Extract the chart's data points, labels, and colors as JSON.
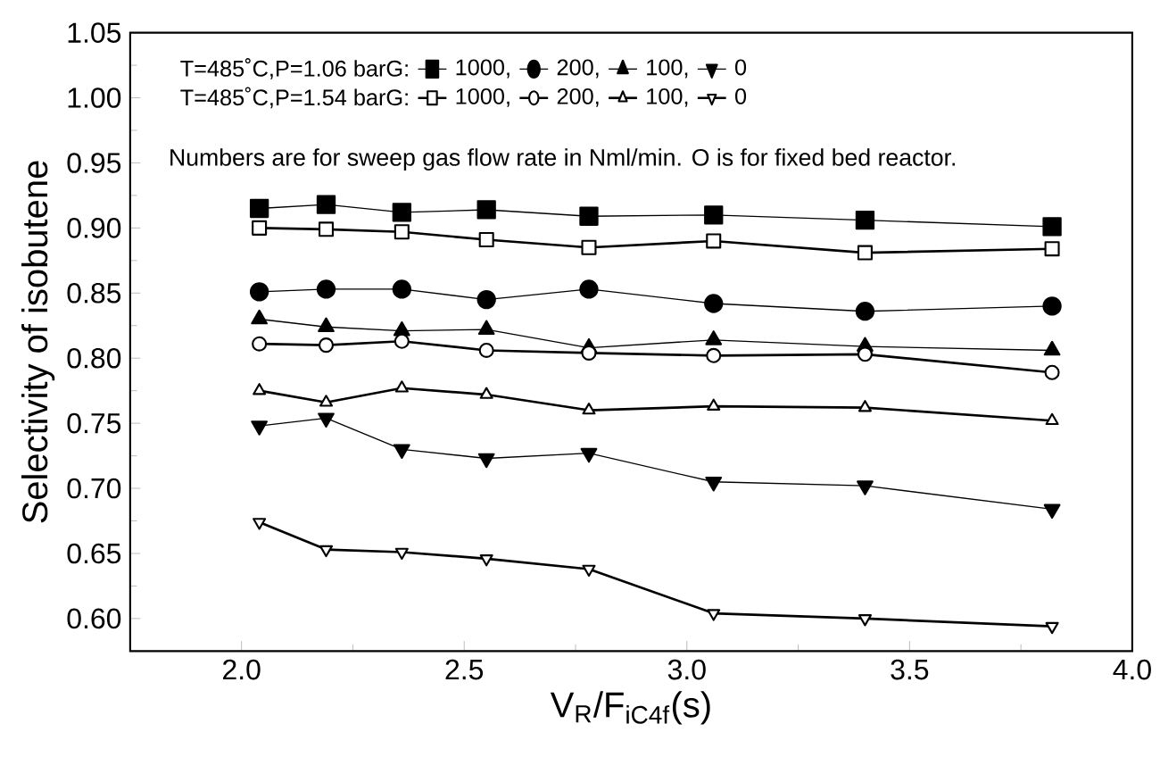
{
  "chart_data": {
    "type": "line",
    "xlabel": "V$_{R}$/F$_{iC4f}$(s)",
    "ylabel": "Selectivity of isobutene",
    "x": [
      2.04,
      2.19,
      2.36,
      2.55,
      2.78,
      3.06,
      3.4,
      3.82
    ],
    "series": [
      {
        "name": "1000,",
        "color": "#000000",
        "marker": "square",
        "values": [
          0.915,
          0.918,
          0.912,
          0.914,
          0.909,
          0.91,
          0.906,
          0.901
        ]
      },
      {
        "name": "200,",
        "color": "#000000",
        "marker": "circle",
        "values": [
          0.851,
          0.853,
          0.853,
          0.845,
          0.853,
          0.842,
          0.836,
          0.84
        ]
      },
      {
        "name": "100,",
        "color": "#000000",
        "marker": "triangle",
        "values": [
          0.83,
          0.824,
          0.821,
          0.822,
          0.808,
          0.814,
          0.809,
          0.806
        ]
      },
      {
        "name": "0",
        "color": "#000000",
        "marker": "triangle-down",
        "values": [
          0.748,
          0.754,
          0.73,
          0.723,
          0.727,
          0.705,
          0.702,
          0.684
        ]
      },
      {
        "name": "1000,",
        "color": "#000000",
        "marker": "square",
        "values": [
          0.9,
          0.899,
          0.897,
          0.891,
          0.885,
          0.89,
          0.881,
          0.884
        ]
      },
      {
        "name": "200,",
        "color": "#000000",
        "marker": "circle",
        "values": [
          0.811,
          0.81,
          0.813,
          0.806,
          0.804,
          0.802,
          0.803,
          0.789
        ]
      },
      {
        "name": "100,",
        "color": "#000000",
        "marker": "triangle",
        "values": [
          0.775,
          0.766,
          0.777,
          0.772,
          0.76,
          0.763,
          0.762,
          0.752
        ]
      },
      {
        "name": "0",
        "color": "#000000",
        "marker": "triangle-down",
        "values": [
          0.674,
          0.653,
          0.651,
          0.646,
          0.638,
          0.604,
          0.6,
          0.594
        ]
      }
    ],
    "annotations": [
      "T=485˚C,P=1.06  barG:",
      "T=485˚C,P=1.54  barG:",
      "Numbers are for sweep gas flow rate in Nml/min. O is for fixed bed reactor."
    ],
    "xlim": [
      1.75,
      4.0
    ],
    "xticks": [
      {
        "value": 2.0,
        "label": "2.0"
      },
      {
        "value": 2.5,
        "label": "2.5"
      },
      {
        "value": 3.0,
        "label": "3.0"
      },
      {
        "value": 3.5,
        "label": "3.5"
      },
      {
        "value": 4.0,
        "label": "4.0"
      }
    ],
    "ylim": [
      0.575,
      1.05
    ],
    "yticks": [
      {
        "value": 0.6,
        "label": "0.60"
      },
      {
        "value": 0.65,
        "label": "0.65"
      },
      {
        "value": 0.7,
        "label": "0.70"
      },
      {
        "value": 0.75,
        "label": "0.75"
      },
      {
        "value": 0.8,
        "label": "0.80"
      },
      {
        "value": 0.85,
        "label": "0.85"
      },
      {
        "value": 0.9,
        "label": "0.90"
      },
      {
        "value": 0.95,
        "label": "0.95"
      },
      {
        "value": 1.0,
        "label": "1.00"
      },
      {
        "value": 1.05,
        "label": "1.05"
      }
    ],
    "legend": "top left",
    "grid": false
  }
}
